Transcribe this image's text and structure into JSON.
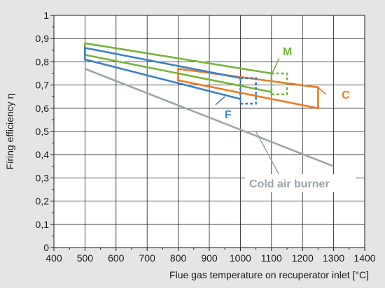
{
  "chart_data": {
    "type": "line",
    "xlabel": "Flue gas temperature on recuperator inlet [°C]",
    "ylabel": "Firing efficiency  η",
    "xlim": [
      400,
      1400
    ],
    "ylim": [
      0,
      1
    ],
    "x_ticks": [
      400,
      500,
      600,
      700,
      800,
      900,
      1000,
      1100,
      1200,
      1300,
      1400
    ],
    "y_ticks": [
      0,
      0.1,
      0.2,
      0.3,
      0.4,
      0.5,
      0.6,
      0.7,
      0.8,
      0.9,
      1
    ],
    "x_tick_labels": [
      "400",
      "500",
      "600",
      "700",
      "800",
      "900",
      "1000",
      "1100",
      "1200",
      "1300",
      "1400"
    ],
    "y_tick_labels": [
      "0",
      "0,1",
      "0,2",
      "0,3",
      "0,4",
      "0,5",
      "0,6",
      "0,7",
      "0,8",
      "0,9",
      "1"
    ],
    "grid": true,
    "series": [
      {
        "name": "Cold air burner",
        "color": "#9aa5ac",
        "kind": "line",
        "points": [
          [
            500,
            0.77
          ],
          [
            1300,
            0.35
          ]
        ]
      },
      {
        "name": "F",
        "color": "#3b82c4",
        "kind": "band",
        "upper": [
          [
            500,
            0.86
          ],
          [
            1000,
            0.73
          ]
        ],
        "lower": [
          [
            500,
            0.81
          ],
          [
            1000,
            0.64
          ]
        ],
        "dashed_box": [
          [
            1000,
            1050
          ],
          [
            0.62,
            0.73
          ]
        ]
      },
      {
        "name": "M",
        "color": "#76b53b",
        "kind": "band",
        "upper": [
          [
            500,
            0.88
          ],
          [
            1100,
            0.75
          ]
        ],
        "lower": [
          [
            500,
            0.83
          ],
          [
            1100,
            0.67
          ]
        ],
        "dashed_box": [
          [
            1100,
            1150
          ],
          [
            0.66,
            0.75
          ]
        ]
      },
      {
        "name": "C",
        "color": "#ee7b24",
        "kind": "band",
        "upper": [
          [
            800,
            0.77
          ],
          [
            1250,
            0.69
          ]
        ],
        "lower": [
          [
            800,
            0.72
          ],
          [
            1250,
            0.6
          ]
        ],
        "right_edge": 1250
      }
    ]
  }
}
